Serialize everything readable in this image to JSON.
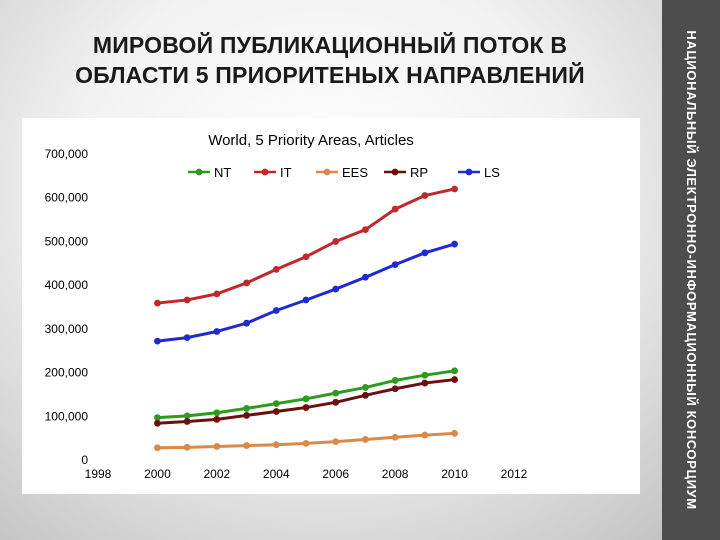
{
  "slide": {
    "title_line1": "МИРОВОЙ ПУБЛИКАЦИОННЫЙ ПОТОК В",
    "title_line2": "ОБЛАСТИ 5 ПРИОРИТЕНЫХ НАПРАВЛЕНИЙ",
    "side_label": "НАЦИОНАЛЬНЫЙ ЭЛЕКТРОННО-ИНФОРМАЦИОННЫЙ КОНСОРЦИУМ"
  },
  "chart_data": {
    "type": "line",
    "title": "World, 5 Priority Areas, Articles",
    "xlabel": "",
    "ylabel": "",
    "xlim": [
      1998,
      2012
    ],
    "ylim": [
      0,
      700000
    ],
    "x_ticks": [
      1998,
      2000,
      2002,
      2004,
      2006,
      2008,
      2010,
      2012
    ],
    "y_ticks": [
      0,
      100000,
      200000,
      300000,
      400000,
      500000,
      600000,
      700000
    ],
    "y_tick_labels": [
      "0",
      "100,000",
      "200,000",
      "300,000",
      "400,000",
      "500,000",
      "600,000",
      "700,000"
    ],
    "grid": false,
    "legend_position": "top",
    "x": [
      2000,
      2001,
      2002,
      2003,
      2004,
      2005,
      2006,
      2007,
      2008,
      2009,
      2010
    ],
    "series": [
      {
        "name": "NT",
        "color": "#2e9a1f",
        "values": [
          97000,
          101000,
          108000,
          118000,
          129000,
          140000,
          153000,
          166000,
          182000,
          194000,
          204000
        ]
      },
      {
        "name": "IT",
        "color": "#c0282d",
        "values": [
          359000,
          366000,
          380000,
          405000,
          436000,
          465000,
          500000,
          527000,
          574000,
          605000,
          620000
        ]
      },
      {
        "name": "EES",
        "color": "#d88a4a",
        "values": [
          28000,
          29000,
          31000,
          33000,
          35000,
          38000,
          42000,
          47000,
          52000,
          57000,
          61000
        ]
      },
      {
        "name": "RP",
        "color": "#6e0f0f",
        "values": [
          84000,
          88000,
          93000,
          102000,
          111000,
          120000,
          132000,
          148000,
          163000,
          176000,
          184000
        ]
      },
      {
        "name": "LS",
        "color": "#1f2bd1",
        "values": [
          272000,
          280000,
          294000,
          313000,
          342000,
          366000,
          391000,
          418000,
          447000,
          474000,
          494000
        ]
      }
    ]
  }
}
